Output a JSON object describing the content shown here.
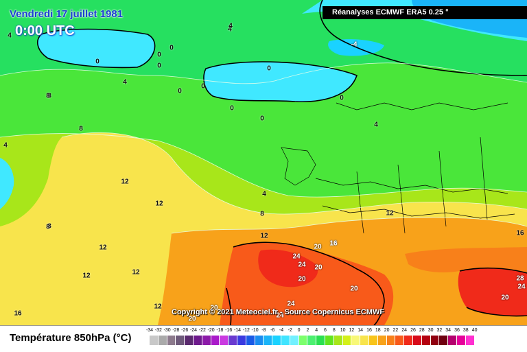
{
  "header": {
    "date": "Vendredi 17 juillet 1981",
    "time": "0:00 UTC",
    "source": "Réanalyses ECMWF ERA5 0.25 °"
  },
  "copyright": "Copyright © 2021 Meteociel.fr - Source Copernicus ECMWF",
  "legend": {
    "title": "Température 850hPa (°C)",
    "ticks": [
      "-34",
      "-32",
      "-30",
      "-28",
      "-26",
      "-24",
      "-22",
      "-20",
      "-18",
      "-16",
      "-14",
      "-12",
      "-10",
      "-8",
      "-6",
      "-4",
      "-2",
      "0",
      "2",
      "4",
      "6",
      "8",
      "10",
      "12",
      "14",
      "16",
      "18",
      "20",
      "22",
      "24",
      "26",
      "28",
      "30",
      "32",
      "34",
      "36",
      "38",
      "40"
    ],
    "colors": [
      "#c8c8c8",
      "#aaaaaa",
      "#8c7a8c",
      "#6e5a7a",
      "#5a2a6e",
      "#6e1a8c",
      "#8c1aa8",
      "#aa1aca",
      "#ca3ae0",
      "#6a3ad0",
      "#3a3ae0",
      "#1a5ae6",
      "#1a8cf0",
      "#1ab4f8",
      "#1ad2ff",
      "#40e4ff",
      "#72f0ff",
      "#7cff6c",
      "#4cf070",
      "#2ae050",
      "#62e41e",
      "#a8e61a",
      "#d4f01a",
      "#f8f878",
      "#f8e44c",
      "#f8c41a",
      "#f8a21a",
      "#f8801a",
      "#f85a1a",
      "#f02a1a",
      "#d80a1a",
      "#b40010",
      "#900010",
      "#6e0010",
      "#b4006e",
      "#e6009a",
      "#ff30d0"
    ]
  },
  "contour_labels": [
    {
      "t": "4",
      "c": "#000"
    },
    {
      "t": "0",
      "c": "#000"
    },
    {
      "t": "-4",
      "c": "#fff"
    },
    {
      "t": "0",
      "c": "#000"
    },
    {
      "t": "0",
      "c": "#000"
    },
    {
      "t": "0",
      "c": "#000"
    },
    {
      "t": "4",
      "c": "#000"
    },
    {
      "t": "0",
      "c": "#000"
    },
    {
      "t": "0",
      "c": "#000"
    },
    {
      "t": "4",
      "c": "#000"
    },
    {
      "t": "0",
      "c": "#000"
    },
    {
      "t": "4",
      "c": "#000"
    },
    {
      "t": "0",
      "c": "#000"
    },
    {
      "t": "0",
      "c": "#000"
    },
    {
      "t": "0",
      "c": "#000"
    },
    {
      "t": "8",
      "c": "#000"
    },
    {
      "t": "8",
      "c": "#000"
    },
    {
      "t": "4",
      "c": "#000"
    },
    {
      "t": "4",
      "c": "#000"
    },
    {
      "t": "8",
      "c": "#000"
    },
    {
      "t": "12",
      "c": "#000"
    },
    {
      "t": "12",
      "c": "#000"
    },
    {
      "t": "8",
      "c": "#000"
    },
    {
      "t": "12",
      "c": "#000"
    },
    {
      "t": "12",
      "c": "#000"
    },
    {
      "t": "12",
      "c": "#000"
    },
    {
      "t": "12",
      "c": "#000"
    },
    {
      "t": "16",
      "c": "#000"
    },
    {
      "t": "12",
      "c": "#000"
    },
    {
      "t": "20",
      "c": "#fff"
    },
    {
      "t": "16",
      "c": "#fff"
    },
    {
      "t": "24",
      "c": "#fff"
    },
    {
      "t": "24",
      "c": "#fff"
    },
    {
      "t": "20",
      "c": "#fff"
    },
    {
      "t": "20",
      "c": "#fff"
    },
    {
      "t": "20",
      "c": "#fff"
    },
    {
      "t": "24",
      "c": "#fff"
    },
    {
      "t": "24",
      "c": "#fff"
    },
    {
      "t": "20",
      "c": "#fff"
    },
    {
      "t": "12",
      "c": "#000"
    },
    {
      "t": "16",
      "c": "#000"
    },
    {
      "t": "16",
      "c": "#000"
    },
    {
      "t": "24",
      "c": "#fff"
    },
    {
      "t": "28",
      "c": "#fff"
    },
    {
      "t": "20",
      "c": "#fff"
    },
    {
      "t": "8",
      "c": "#000"
    },
    {
      "t": "4",
      "c": "#000"
    },
    {
      "t": "8",
      "c": "#000"
    },
    {
      "t": "20",
      "c": "#fff"
    }
  ]
}
